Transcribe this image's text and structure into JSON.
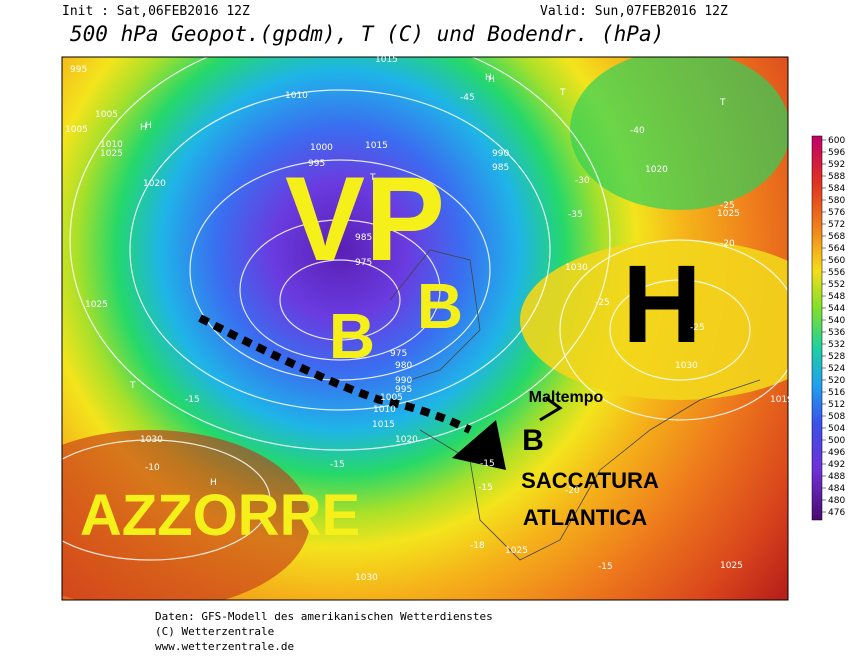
{
  "header": {
    "init": "Init : Sat,06FEB2016 12Z",
    "valid": "Valid: Sun,07FEB2016 12Z",
    "title": "500 hPa Geopot.(gpdm), T (C) und Bodendr. (hPa)"
  },
  "annotations": {
    "vp": "VP",
    "low_1": "B",
    "low_2": "B",
    "high": "H",
    "azores": "AZZORRE",
    "bad_weather": "Maltempo",
    "low_3": "B",
    "trough_1": "SACCATURA",
    "trough_2": "ATLANTICA"
  },
  "contour_labels": [
    "995",
    "1015",
    "1005",
    "H",
    "1010",
    "1005",
    "1010",
    "1020",
    "1025",
    "H",
    "T",
    "1000",
    "995",
    "1015",
    "T",
    "990",
    "985",
    "-45",
    "-40",
    "-35",
    "-30",
    "-25",
    "-20",
    "1020",
    "1025",
    "985",
    "975",
    "980",
    "975",
    "990",
    "995",
    "1005",
    "1010",
    "1015",
    "1020",
    "1025",
    "1030",
    "-15",
    "-10",
    "-15",
    "-18",
    "-15",
    "1030",
    "1025",
    "1030",
    "1025",
    "-15",
    "-15",
    "-20",
    "-25",
    "-25",
    "T",
    "H",
    "H",
    "H",
    "T",
    "1030",
    "1019"
  ],
  "colorbar": [
    "600",
    "596",
    "592",
    "588",
    "584",
    "580",
    "576",
    "572",
    "568",
    "564",
    "560",
    "556",
    "552",
    "548",
    "544",
    "540",
    "536",
    "532",
    "528",
    "524",
    "520",
    "516",
    "512",
    "508",
    "504",
    "500",
    "496",
    "492",
    "488",
    "484",
    "480",
    "476"
  ],
  "footer": {
    "line1": "Daten: GFS-Modell des amerikanischen Wetterdienstes",
    "line2": "(C) Wetterzentrale",
    "line3": "www.wetterzentrale.de"
  }
}
